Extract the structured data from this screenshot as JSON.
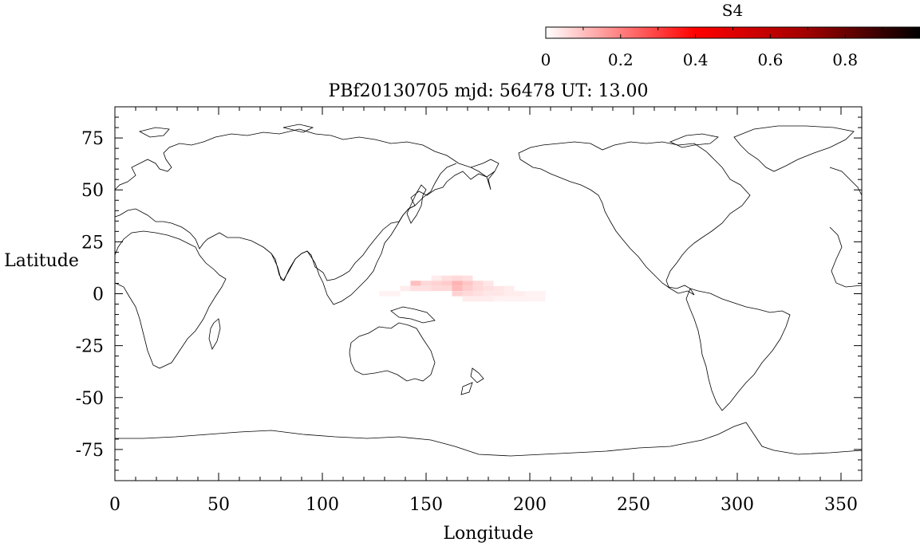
{
  "chart_data": {
    "type": "heatmap",
    "title": "PBf20130705  mjd: 56478  UT:  13.00",
    "xlabel": "Longitude",
    "ylabel": "Latitude",
    "xlim": [
      0,
      360
    ],
    "ylim": [
      -90,
      90
    ],
    "xticks": [
      0,
      50,
      100,
      150,
      200,
      250,
      300,
      350
    ],
    "yticks": [
      75,
      50,
      25,
      0,
      -25,
      -50,
      -75
    ],
    "xtick_labels": [
      "0",
      "50",
      "100",
      "150",
      "200",
      "250",
      "300",
      "350"
    ],
    "ytick_labels": [
      "75",
      "50",
      "25",
      "0",
      "-25",
      "-50",
      "-75"
    ],
    "colorbar": {
      "label": "S4",
      "range": [
        0,
        1
      ],
      "ticks": [
        0,
        0.2,
        0.4,
        0.6,
        0.8
      ],
      "tick_labels": [
        "0",
        "0.2",
        "0.4",
        "0.6",
        "0.8"
      ],
      "colors": [
        "#ffffff",
        "#ff8080",
        "#ff0000",
        "#800000",
        "#000000"
      ]
    },
    "grid": false,
    "cells": [
      {
        "lon": 145,
        "lat": 5,
        "value": 0.1
      },
      {
        "lon": 150,
        "lat": 5,
        "value": 0.06
      },
      {
        "lon": 155,
        "lat": 5,
        "value": 0.07
      },
      {
        "lon": 160,
        "lat": 5,
        "value": 0.08
      },
      {
        "lon": 165,
        "lat": 5,
        "value": 0.12
      },
      {
        "lon": 170,
        "lat": 5,
        "value": 0.09
      },
      {
        "lon": 175,
        "lat": 5,
        "value": 0.06
      },
      {
        "lon": 180,
        "lat": 5,
        "value": 0.04
      },
      {
        "lon": 140,
        "lat": 2.5,
        "value": 0.03
      },
      {
        "lon": 145,
        "lat": 2.5,
        "value": 0.05
      },
      {
        "lon": 150,
        "lat": 2.5,
        "value": 0.05
      },
      {
        "lon": 155,
        "lat": 2.5,
        "value": 0.06
      },
      {
        "lon": 160,
        "lat": 2.5,
        "value": 0.06
      },
      {
        "lon": 165,
        "lat": 2.5,
        "value": 0.11
      },
      {
        "lon": 170,
        "lat": 2.5,
        "value": 0.08
      },
      {
        "lon": 175,
        "lat": 2.5,
        "value": 0.06
      },
      {
        "lon": 180,
        "lat": 2.5,
        "value": 0.05
      },
      {
        "lon": 185,
        "lat": 2.5,
        "value": 0.04
      },
      {
        "lon": 190,
        "lat": 2.5,
        "value": 0.03
      },
      {
        "lon": 130,
        "lat": 0,
        "value": 0.02
      },
      {
        "lon": 135,
        "lat": 0,
        "value": 0.02
      },
      {
        "lon": 165,
        "lat": 0,
        "value": 0.07
      },
      {
        "lon": 170,
        "lat": 0,
        "value": 0.06
      },
      {
        "lon": 175,
        "lat": 0,
        "value": 0.05
      },
      {
        "lon": 180,
        "lat": 0,
        "value": 0.04
      },
      {
        "lon": 185,
        "lat": 0,
        "value": 0.04
      },
      {
        "lon": 190,
        "lat": 0,
        "value": 0.03
      },
      {
        "lon": 195,
        "lat": 0,
        "value": 0.03
      },
      {
        "lon": 200,
        "lat": 0,
        "value": 0.02
      },
      {
        "lon": 205,
        "lat": 0,
        "value": 0.02
      },
      {
        "lon": 160,
        "lat": 7.5,
        "value": 0.05
      },
      {
        "lon": 165,
        "lat": 7.5,
        "value": 0.06
      },
      {
        "lon": 170,
        "lat": 7.5,
        "value": 0.05
      },
      {
        "lon": 155,
        "lat": 7.5,
        "value": 0.03
      },
      {
        "lon": 170,
        "lat": -2.5,
        "value": 0.03
      },
      {
        "lon": 175,
        "lat": -2.5,
        "value": 0.03
      },
      {
        "lon": 180,
        "lat": -2.5,
        "value": 0.03
      },
      {
        "lon": 185,
        "lat": -2.5,
        "value": 0.02
      },
      {
        "lon": 190,
        "lat": -2.5,
        "value": 0.02
      },
      {
        "lon": 195,
        "lat": -2.5,
        "value": 0.02
      },
      {
        "lon": 200,
        "lat": -2.5,
        "value": 0.02
      },
      {
        "lon": 205,
        "lat": -2.5,
        "value": 0.02
      }
    ]
  }
}
